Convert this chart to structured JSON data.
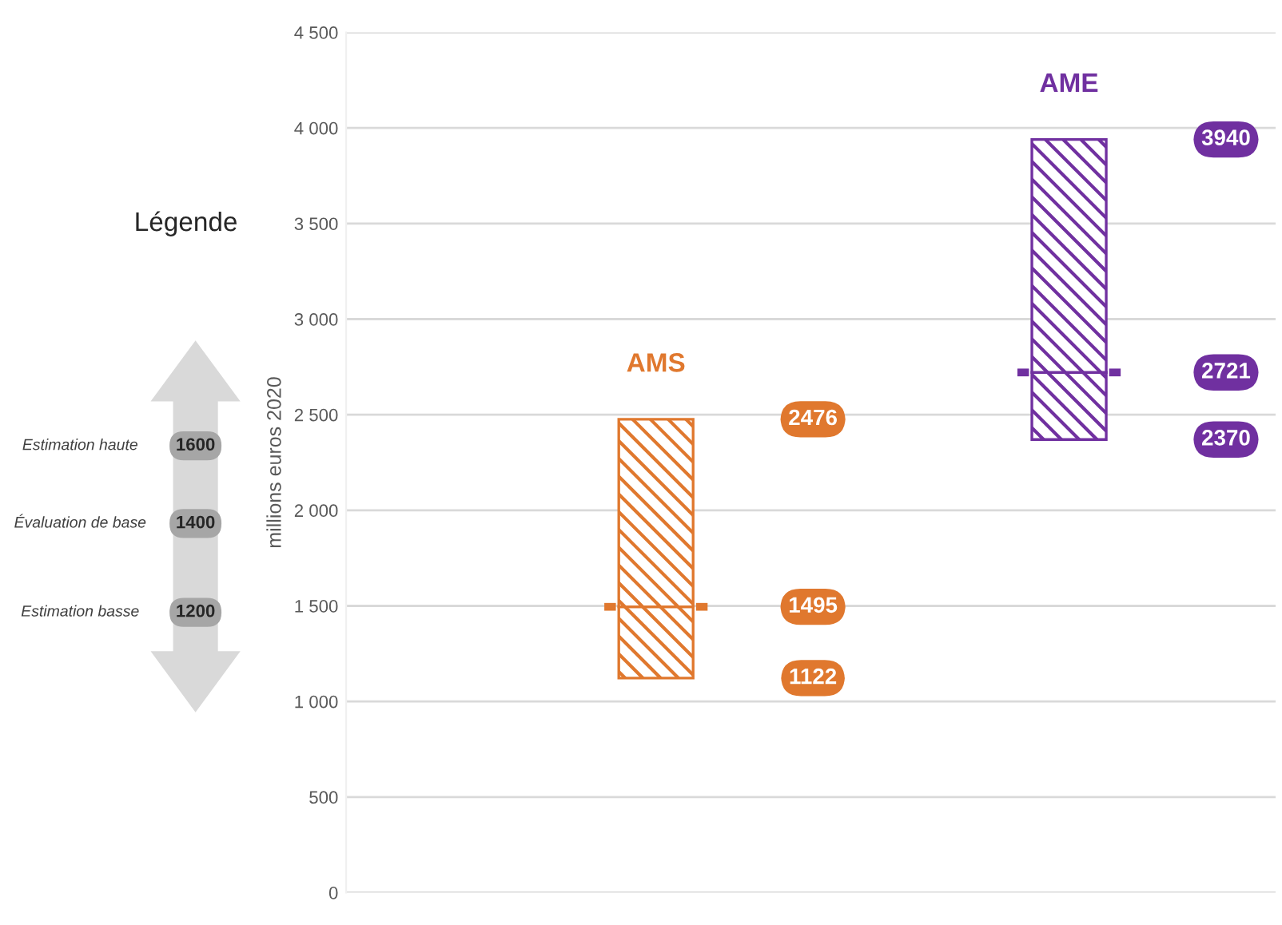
{
  "chart_data": {
    "type": "bar",
    "categories": [
      "AMS",
      "AME"
    ],
    "series": [
      {
        "colors": [
          "#e0782e",
          "#7030a0"
        ],
        "base": [
          1122,
          2370
        ],
        "values": [
          373,
          351
        ]
      },
      {
        "colors": [
          "#e0782e",
          "#7030a0"
        ],
        "base": [
          1495,
          2721
        ],
        "values": [
          981,
          1219
        ]
      }
    ],
    "ylabel": "millions euros 2020",
    "legend_title": "Légende",
    "ylim": [
      0,
      4500
    ],
    "yticks": [
      0,
      500,
      {
        "value": 1000,
        "label": "1 000"
      },
      {
        "value": 1500,
        "label": "1 500"
      },
      {
        "value": 2000,
        "label": "2 000"
      },
      {
        "value": 2500,
        "label": "2 500"
      },
      {
        "value": 3000,
        "label": "3 000"
      },
      {
        "value": 3500,
        "label": "3 500"
      },
      {
        "value": 4000,
        "label": "4 000"
      },
      {
        "value": 4500,
        "label": "4 500"
      }
    ],
    "grid": "y",
    "tick_labels": "y",
    "annotations": [
      "1122",
      "1495",
      "2476",
      "2370",
      "2721",
      "3940",
      "Estimation haute",
      "Évaluation de base",
      "Estimation basse",
      "1600",
      "1400",
      "1200"
    ]
  }
}
